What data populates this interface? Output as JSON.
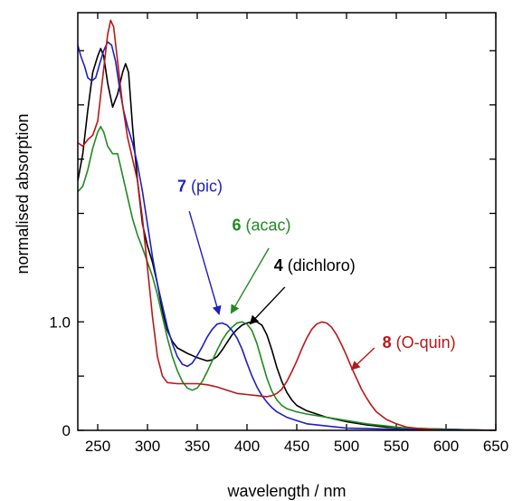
{
  "chart_data": {
    "type": "line",
    "title": "",
    "xlabel": "wavelength / nm",
    "ylabel": "normalised absorption",
    "xlim": [
      230,
      650
    ],
    "ylim": [
      0,
      3.85
    ],
    "x_ticks": [
      250,
      300,
      350,
      400,
      450,
      500,
      550,
      600,
      650
    ],
    "x_tick_labels": [
      "250",
      "300",
      "350",
      "400",
      "450",
      "500",
      "550",
      "600",
      "650"
    ],
    "y_tick_labels": [
      {
        "value": 0,
        "label": "0"
      },
      {
        "value": 1.0,
        "label": "1.0"
      }
    ],
    "y_minor_ticks": [
      0.5,
      1.5,
      2.0,
      2.5,
      3.0,
      3.5
    ],
    "grid": false,
    "series": [
      {
        "name": "4 (dichloro)",
        "color": "#000000",
        "points": [
          [
            230,
            2.3
          ],
          [
            235,
            2.55
          ],
          [
            240,
            2.95
          ],
          [
            245,
            3.3
          ],
          [
            250,
            3.45
          ],
          [
            253,
            3.52
          ],
          [
            256,
            3.45
          ],
          [
            260,
            3.2
          ],
          [
            265,
            2.98
          ],
          [
            270,
            3.1
          ],
          [
            275,
            3.3
          ],
          [
            278,
            3.38
          ],
          [
            281,
            3.3
          ],
          [
            285,
            2.8
          ],
          [
            290,
            2.3
          ],
          [
            295,
            1.9
          ],
          [
            300,
            1.7
          ],
          [
            305,
            1.55
          ],
          [
            310,
            1.35
          ],
          [
            315,
            1.1
          ],
          [
            320,
            0.92
          ],
          [
            325,
            0.82
          ],
          [
            330,
            0.76
          ],
          [
            340,
            0.71
          ],
          [
            350,
            0.67
          ],
          [
            360,
            0.64
          ],
          [
            365,
            0.65
          ],
          [
            370,
            0.68
          ],
          [
            375,
            0.74
          ],
          [
            380,
            0.81
          ],
          [
            385,
            0.88
          ],
          [
            390,
            0.93
          ],
          [
            395,
            0.97
          ],
          [
            400,
            0.99
          ],
          [
            405,
            1.0
          ],
          [
            410,
            1.0
          ],
          [
            415,
            0.97
          ],
          [
            420,
            0.88
          ],
          [
            425,
            0.74
          ],
          [
            430,
            0.58
          ],
          [
            435,
            0.45
          ],
          [
            440,
            0.35
          ],
          [
            445,
            0.28
          ],
          [
            450,
            0.23
          ],
          [
            460,
            0.18
          ],
          [
            470,
            0.15
          ],
          [
            480,
            0.12
          ],
          [
            490,
            0.1
          ],
          [
            500,
            0.08
          ],
          [
            520,
            0.05
          ],
          [
            540,
            0.03
          ],
          [
            560,
            0.02
          ],
          [
            600,
            0.01
          ],
          [
            650,
            0.0
          ]
        ]
      },
      {
        "name": "6 (acac)",
        "color": "#1f8a1f",
        "points": [
          [
            230,
            2.2
          ],
          [
            235,
            2.25
          ],
          [
            240,
            2.4
          ],
          [
            245,
            2.6
          ],
          [
            250,
            2.75
          ],
          [
            253,
            2.8
          ],
          [
            256,
            2.75
          ],
          [
            260,
            2.62
          ],
          [
            265,
            2.55
          ],
          [
            270,
            2.55
          ],
          [
            275,
            2.35
          ],
          [
            280,
            2.15
          ],
          [
            285,
            1.95
          ],
          [
            290,
            1.8
          ],
          [
            295,
            1.68
          ],
          [
            300,
            1.55
          ],
          [
            305,
            1.42
          ],
          [
            310,
            1.25
          ],
          [
            315,
            1.05
          ],
          [
            320,
            0.85
          ],
          [
            325,
            0.68
          ],
          [
            330,
            0.55
          ],
          [
            335,
            0.45
          ],
          [
            340,
            0.39
          ],
          [
            345,
            0.37
          ],
          [
            350,
            0.39
          ],
          [
            355,
            0.45
          ],
          [
            360,
            0.54
          ],
          [
            365,
            0.64
          ],
          [
            370,
            0.74
          ],
          [
            375,
            0.83
          ],
          [
            380,
            0.9
          ],
          [
            385,
            0.95
          ],
          [
            390,
            0.99
          ],
          [
            395,
            1.0
          ],
          [
            400,
            0.98
          ],
          [
            405,
            0.92
          ],
          [
            410,
            0.8
          ],
          [
            415,
            0.64
          ],
          [
            420,
            0.48
          ],
          [
            425,
            0.36
          ],
          [
            430,
            0.28
          ],
          [
            435,
            0.23
          ],
          [
            440,
            0.2
          ],
          [
            450,
            0.17
          ],
          [
            460,
            0.15
          ],
          [
            480,
            0.12
          ],
          [
            500,
            0.09
          ],
          [
            520,
            0.06
          ],
          [
            540,
            0.04
          ],
          [
            560,
            0.02
          ],
          [
            600,
            0.01
          ],
          [
            650,
            0.0
          ]
        ]
      },
      {
        "name": "7 (pic)",
        "color": "#1f1fbf",
        "points": [
          [
            230,
            3.55
          ],
          [
            233,
            3.45
          ],
          [
            237,
            3.35
          ],
          [
            240,
            3.25
          ],
          [
            244,
            3.22
          ],
          [
            248,
            3.25
          ],
          [
            252,
            3.38
          ],
          [
            256,
            3.5
          ],
          [
            260,
            3.58
          ],
          [
            264,
            3.55
          ],
          [
            268,
            3.4
          ],
          [
            272,
            3.15
          ],
          [
            276,
            2.95
          ],
          [
            280,
            2.8
          ],
          [
            285,
            2.65
          ],
          [
            290,
            2.45
          ],
          [
            295,
            2.2
          ],
          [
            300,
            1.9
          ],
          [
            305,
            1.6
          ],
          [
            310,
            1.35
          ],
          [
            315,
            1.15
          ],
          [
            320,
            0.95
          ],
          [
            325,
            0.8
          ],
          [
            330,
            0.68
          ],
          [
            335,
            0.61
          ],
          [
            340,
            0.59
          ],
          [
            345,
            0.62
          ],
          [
            350,
            0.69
          ],
          [
            355,
            0.77
          ],
          [
            360,
            0.86
          ],
          [
            365,
            0.93
          ],
          [
            370,
            0.98
          ],
          [
            375,
            0.99
          ],
          [
            380,
            0.97
          ],
          [
            385,
            0.92
          ],
          [
            390,
            0.85
          ],
          [
            395,
            0.75
          ],
          [
            400,
            0.62
          ],
          [
            405,
            0.5
          ],
          [
            410,
            0.4
          ],
          [
            415,
            0.32
          ],
          [
            420,
            0.26
          ],
          [
            425,
            0.21
          ],
          [
            430,
            0.17
          ],
          [
            440,
            0.12
          ],
          [
            450,
            0.09
          ],
          [
            460,
            0.06
          ],
          [
            480,
            0.04
          ],
          [
            500,
            0.02
          ],
          [
            550,
            0.01
          ],
          [
            650,
            0.0
          ]
        ]
      },
      {
        "name": "8 (O-quin)",
        "color": "#b81818",
        "points": [
          [
            230,
            2.65
          ],
          [
            235,
            2.62
          ],
          [
            240,
            2.68
          ],
          [
            245,
            2.72
          ],
          [
            250,
            2.85
          ],
          [
            255,
            3.25
          ],
          [
            260,
            3.65
          ],
          [
            263,
            3.78
          ],
          [
            266,
            3.72
          ],
          [
            270,
            3.4
          ],
          [
            275,
            3.0
          ],
          [
            280,
            2.7
          ],
          [
            285,
            2.5
          ],
          [
            290,
            2.3
          ],
          [
            295,
            1.95
          ],
          [
            300,
            1.5
          ],
          [
            305,
            1.05
          ],
          [
            310,
            0.68
          ],
          [
            315,
            0.5
          ],
          [
            320,
            0.44
          ],
          [
            330,
            0.43
          ],
          [
            340,
            0.43
          ],
          [
            350,
            0.43
          ],
          [
            360,
            0.42
          ],
          [
            370,
            0.4
          ],
          [
            380,
            0.37
          ],
          [
            390,
            0.34
          ],
          [
            400,
            0.33
          ],
          [
            410,
            0.32
          ],
          [
            420,
            0.31
          ],
          [
            425,
            0.32
          ],
          [
            430,
            0.34
          ],
          [
            435,
            0.38
          ],
          [
            440,
            0.45
          ],
          [
            445,
            0.54
          ],
          [
            450,
            0.64
          ],
          [
            455,
            0.75
          ],
          [
            460,
            0.85
          ],
          [
            465,
            0.93
          ],
          [
            470,
            0.98
          ],
          [
            475,
            1.0
          ],
          [
            480,
            0.99
          ],
          [
            485,
            0.95
          ],
          [
            490,
            0.88
          ],
          [
            495,
            0.79
          ],
          [
            500,
            0.69
          ],
          [
            505,
            0.58
          ],
          [
            510,
            0.48
          ],
          [
            515,
            0.38
          ],
          [
            520,
            0.3
          ],
          [
            525,
            0.23
          ],
          [
            530,
            0.17
          ],
          [
            540,
            0.1
          ],
          [
            550,
            0.06
          ],
          [
            560,
            0.03
          ],
          [
            580,
            0.01
          ],
          [
            600,
            0.0
          ],
          [
            650,
            0.0
          ]
        ]
      }
    ],
    "annotations": [
      {
        "number": "7",
        "text": "(pic)",
        "color": "#1f1fbf",
        "label_x": 330,
        "label_y": 2.2,
        "arrow_from": [
          342,
          2.02
        ],
        "arrow_to": [
          372,
          1.07
        ]
      },
      {
        "number": "6",
        "text": "(acac)",
        "color": "#1f8a1f",
        "label_x": 385,
        "label_y": 1.84,
        "arrow_from": [
          422,
          1.68
        ],
        "arrow_to": [
          384,
          1.08
        ]
      },
      {
        "number": "4",
        "text": "(dichloro)",
        "color": "#000000",
        "label_x": 427,
        "label_y": 1.47,
        "arrow_from": [
          438,
          1.32
        ],
        "arrow_to": [
          403,
          0.98
        ]
      },
      {
        "number": "8",
        "text": "(O-quin)",
        "color": "#b81818",
        "label_x": 536,
        "label_y": 0.76,
        "arrow_from": [
          528,
          0.76
        ],
        "arrow_to": [
          505,
          0.56
        ]
      }
    ]
  }
}
